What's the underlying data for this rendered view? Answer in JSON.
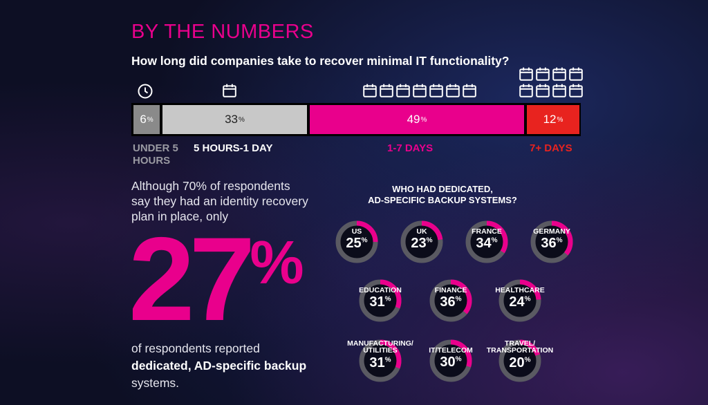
{
  "header": {
    "title": "BY THE NUMBERS",
    "question": "How long did companies take to recover minimal IT functionality?"
  },
  "chart_data": [
    {
      "type": "bar",
      "title": "How long did companies take to recover minimal IT functionality?",
      "categories": [
        "UNDER 5 HOURS",
        "5 HOURS-1 DAY",
        "1-7 DAYS",
        "7+ DAYS"
      ],
      "values": [
        6,
        33,
        49,
        12
      ],
      "unit": "%",
      "colors": [
        "#8a8a8a",
        "#c8c8c8",
        "#e9008c",
        "#e8231f"
      ],
      "label_colors": [
        "#9a9aa2",
        "#ffffff",
        "#e9008c",
        "#e8231f"
      ],
      "icons": [
        "clock-icon",
        "calendar-icon",
        "calendar-icon",
        "calendar-icon"
      ],
      "icon_counts": [
        1,
        1,
        7,
        8
      ]
    },
    {
      "type": "pie",
      "title": "WHO HAD DEDICATED, AD-SPECIFIC BACKUP SYSTEMS?",
      "title_lines": [
        "WHO HAD DEDICATED,",
        "AD-SPECIFIC BACKUP SYSTEMS?"
      ],
      "unit": "%",
      "ring_color": "#e9008c",
      "track_color": "#5a5a62",
      "items": [
        {
          "label": [
            "US"
          ],
          "value": 25
        },
        {
          "label": [
            "UK"
          ],
          "value": 23
        },
        {
          "label": [
            "FRANCE"
          ],
          "value": 34
        },
        {
          "label": [
            "GERMANY"
          ],
          "value": 36
        },
        {
          "label": [
            "EDUCATION"
          ],
          "value": 31
        },
        {
          "label": [
            "FINANCE"
          ],
          "value": 36
        },
        {
          "label": [
            "HEALTHCARE"
          ],
          "value": 24
        },
        {
          "label": [
            "MANUFACTURING/",
            "UTILITIES"
          ],
          "value": 31
        },
        {
          "label": [
            "IT/TELECOM"
          ],
          "value": 30
        },
        {
          "label": [
            "TRAVEL/",
            "TRANSPORTATION"
          ],
          "value": 20
        }
      ]
    }
  ],
  "stat": {
    "intro": "Although 70% of respondents say they had an identity recovery plan in place, only",
    "number": "27",
    "percent": "%",
    "outro_pre": "of respondents reported ",
    "outro_bold": "dedicated, AD-specific backup",
    "outro_post": " systems."
  }
}
